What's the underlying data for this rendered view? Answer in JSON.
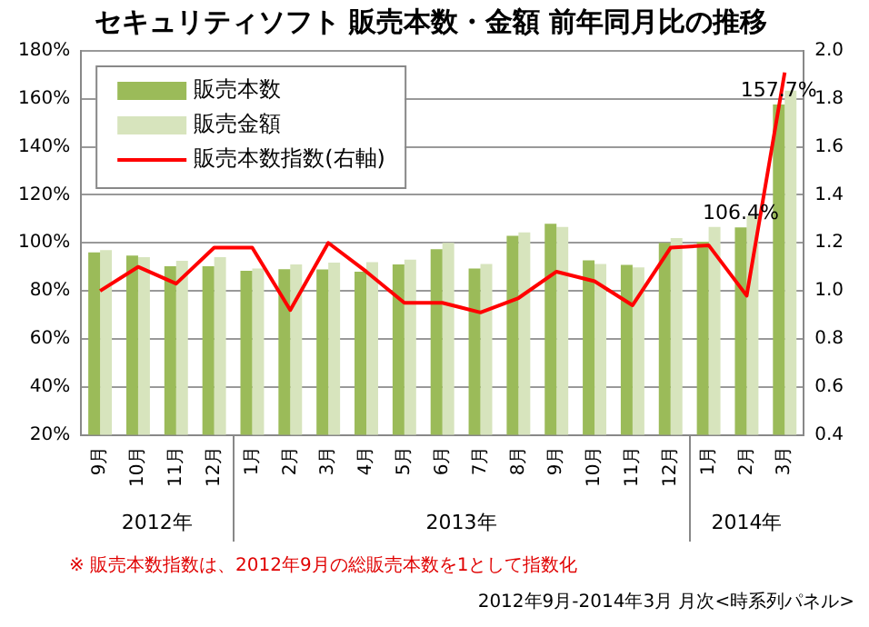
{
  "chart_data": {
    "type": "bar",
    "title": "セキュリティソフト 販売本数・金額 前年同月比の推移",
    "categories": [
      "9月",
      "10月",
      "11月",
      "12月",
      "1月",
      "2月",
      "3月",
      "4月",
      "5月",
      "6月",
      "7月",
      "8月",
      "9月",
      "10月",
      "11月",
      "12月",
      "1月",
      "2月",
      "3月"
    ],
    "series": [
      {
        "name": "販売本数",
        "color": "#9bbb59",
        "values": [
          96,
          94.7,
          90.3,
          90.3,
          88.4,
          89,
          88.9,
          88,
          91,
          97.4,
          89.3,
          102.9,
          108,
          92.7,
          90.8,
          100,
          100.5,
          106.4,
          157.7
        ],
        "value_labels": [
          null,
          null,
          null,
          null,
          null,
          null,
          null,
          null,
          null,
          null,
          null,
          null,
          null,
          null,
          null,
          null,
          null,
          "106.4%",
          "157.7%"
        ]
      },
      {
        "name": "販売金額",
        "color": "#d7e4bd",
        "values": [
          97,
          94,
          92.5,
          94,
          89.3,
          91,
          91.8,
          92,
          93,
          100,
          91.2,
          104.4,
          106.6,
          91.2,
          89.8,
          102,
          106.6,
          111.2,
          163.4
        ]
      },
      {
        "name": "販売本数指数(右軸)",
        "type": "line",
        "axis": "y2",
        "color": "#ff0000",
        "values": [
          1.0,
          1.1,
          1.03,
          1.18,
          1.18,
          0.92,
          1.2,
          1.08,
          0.95,
          0.95,
          0.91,
          0.97,
          1.08,
          1.04,
          0.94,
          1.18,
          1.19,
          0.98,
          1.91
        ]
      }
    ],
    "ylim": [
      20,
      180
    ],
    "yticks": [
      {
        "value": 20,
        "label": "20%"
      },
      {
        "value": 40,
        "label": "40%"
      },
      {
        "value": 60,
        "label": "60%"
      },
      {
        "value": 80,
        "label": "80%"
      },
      {
        "value": 100,
        "label": "100%"
      },
      {
        "value": 120,
        "label": "120%"
      },
      {
        "value": 140,
        "label": "140%"
      },
      {
        "value": 160,
        "label": "160%"
      },
      {
        "value": 180,
        "label": "180%"
      }
    ],
    "y2lim": [
      0.4,
      2.0
    ],
    "y2ticks": [
      {
        "value": 0.4,
        "label": "0.4"
      },
      {
        "value": 0.6,
        "label": "0.6"
      },
      {
        "value": 0.8,
        "label": "0.8"
      },
      {
        "value": 1.0,
        "label": "1.0"
      },
      {
        "value": 1.2,
        "label": "1.2"
      },
      {
        "value": 1.4,
        "label": "1.4"
      },
      {
        "value": 1.6,
        "label": "1.6"
      },
      {
        "value": 1.8,
        "label": "1.8"
      },
      {
        "value": 2.0,
        "label": "2.0"
      }
    ],
    "grid": "y",
    "legend": "top left",
    "marker": "none",
    "annotations": [
      "2012年",
      "2013年",
      "2014年",
      "※ 販売本数指数は、2012年9月の総販売本数を1として指数化",
      "2012年9月-2014年3月 月次<時系列パネル>"
    ]
  }
}
